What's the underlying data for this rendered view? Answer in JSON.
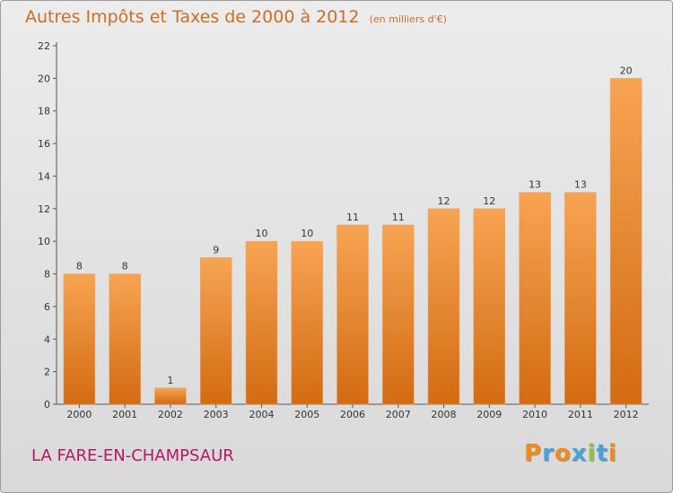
{
  "chart_data": {
    "type": "bar",
    "title": "Autres Impôts et Taxes de 2000 à 2012",
    "subtitle": "(en milliers d'€)",
    "categories": [
      "2000",
      "2001",
      "2002",
      "2003",
      "2004",
      "2005",
      "2006",
      "2007",
      "2008",
      "2009",
      "2010",
      "2011",
      "2012"
    ],
    "values": [
      8,
      8,
      1,
      9,
      10,
      10,
      11,
      11,
      12,
      12,
      13,
      13,
      20
    ],
    "data_labels": [
      "8",
      "8",
      "1",
      "9",
      "10",
      "10",
      "11",
      "11",
      "12",
      "12",
      "13",
      "13",
      "20"
    ],
    "xlabel": "",
    "ylabel": "",
    "ylim": [
      0,
      22
    ],
    "yticks": [
      0,
      2,
      4,
      6,
      8,
      10,
      12,
      14,
      16,
      18,
      20,
      22
    ],
    "grid": false,
    "bar_color": "#f0923a"
  },
  "footer": {
    "commune": "LA FARE-EN-CHAMPSAUR"
  },
  "logo": {
    "text": "Proxiti",
    "letters": [
      "P",
      "r",
      "o",
      "x",
      "i",
      "t",
      "i"
    ],
    "colors": [
      "#f08a1c",
      "#4aa2d9",
      "#f08a1c",
      "#4aa2d9",
      "#8bc34a",
      "#4aa2d9",
      "#f08a1c"
    ]
  }
}
